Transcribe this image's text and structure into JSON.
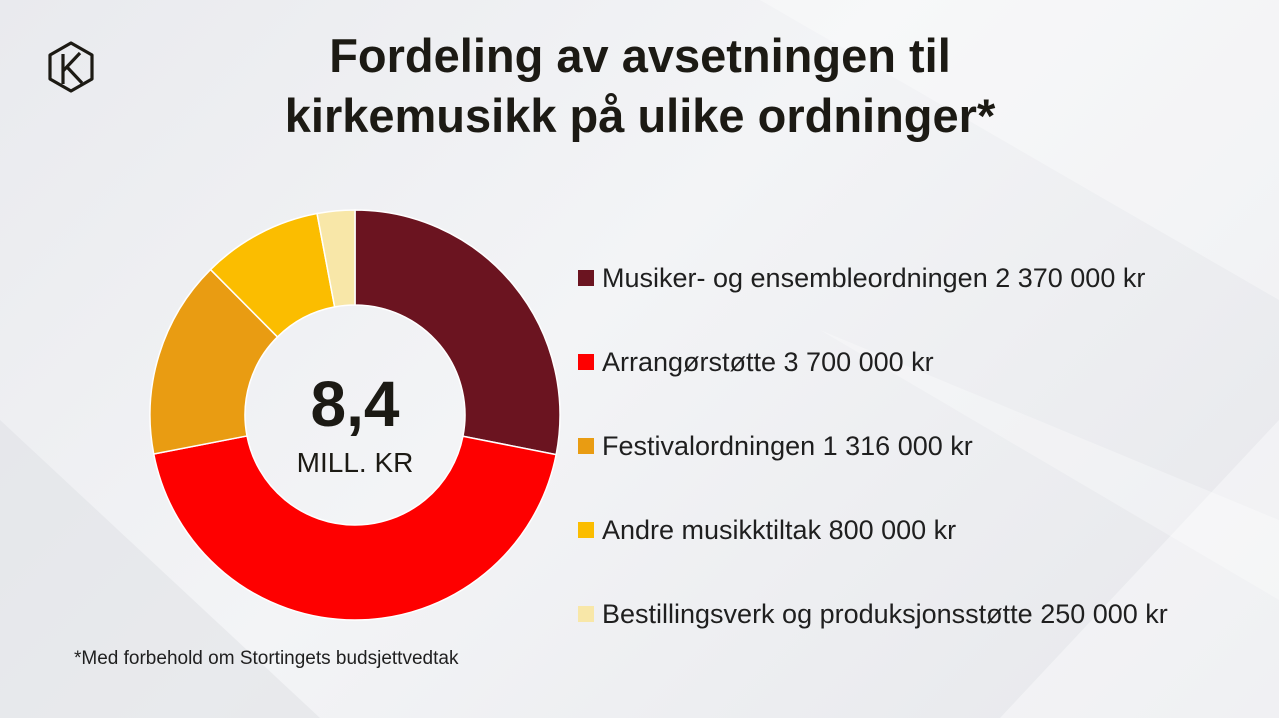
{
  "title": {
    "line1": "Fordeling av avsetningen til",
    "line2": "kirkemusikk på ulike ordninger*"
  },
  "logo": {
    "icon": "k-hexagon-logo-icon"
  },
  "chart_data": {
    "type": "pie",
    "donut": true,
    "center_value": "8,4",
    "center_unit": "MILL. KR",
    "legend_position": "right",
    "slices": [
      {
        "label": "Musiker- og ensembleordningen 2 370 000 kr",
        "value": 2370000,
        "color": "#6b1420"
      },
      {
        "label": "Arrangørstøtte 3 700 000 kr",
        "value": 3700000,
        "color": "#fe0000"
      },
      {
        "label": "Festivalordningen 1 316 000 kr",
        "value": 1316000,
        "color": "#e99c12"
      },
      {
        "label": "Andre musikktiltak 800 000 kr",
        "value": 800000,
        "color": "#fbbd00"
      },
      {
        "label": "Bestillingsverk og produksjonsstøtte 250 000 kr",
        "value": 250000,
        "color": "#f8e7a8"
      }
    ]
  },
  "footnote": "*Med forbehold om Stortingets budsjettvedtak"
}
